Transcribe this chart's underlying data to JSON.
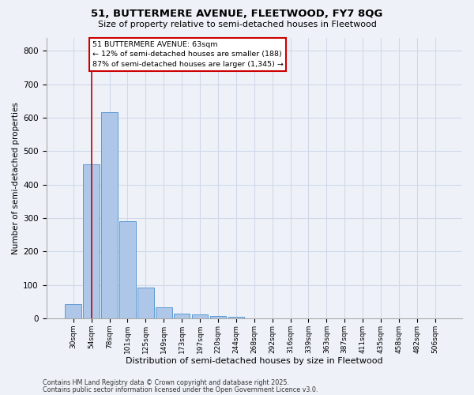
{
  "title1": "51, BUTTERMERE AVENUE, FLEETWOOD, FY7 8QG",
  "title2": "Size of property relative to semi-detached houses in Fleetwood",
  "xlabel": "Distribution of semi-detached houses by size in Fleetwood",
  "ylabel": "Number of semi-detached properties",
  "bar_labels": [
    "30sqm",
    "54sqm",
    "78sqm",
    "101sqm",
    "125sqm",
    "149sqm",
    "173sqm",
    "197sqm",
    "220sqm",
    "244sqm",
    "268sqm",
    "292sqm",
    "316sqm",
    "339sqm",
    "363sqm",
    "387sqm",
    "411sqm",
    "435sqm",
    "458sqm",
    "482sqm",
    "506sqm"
  ],
  "bar_values": [
    42,
    460,
    617,
    290,
    93,
    33,
    15,
    12,
    7,
    5,
    0,
    0,
    0,
    0,
    0,
    0,
    0,
    0,
    0,
    0,
    0
  ],
  "bar_color": "#aec6e8",
  "bar_edge_color": "#5b9bd5",
  "grid_color": "#d0d8e8",
  "background_color": "#eef2f8",
  "annotation_box_facecolor": "#ffffff",
  "annotation_border_color": "#cc0000",
  "red_line_x": 1.0,
  "annotation_title": "51 BUTTERMERE AVENUE: 63sqm",
  "annotation_line1": "← 12% of semi-detached houses are smaller (188)",
  "annotation_line2": "87% of semi-detached houses are larger (1,345) →",
  "footnote1": "Contains HM Land Registry data © Crown copyright and database right 2025.",
  "footnote2": "Contains public sector information licensed under the Open Government Licence v3.0.",
  "ylim": [
    0,
    840
  ],
  "yticks": [
    0,
    100,
    200,
    300,
    400,
    500,
    600,
    700,
    800
  ]
}
